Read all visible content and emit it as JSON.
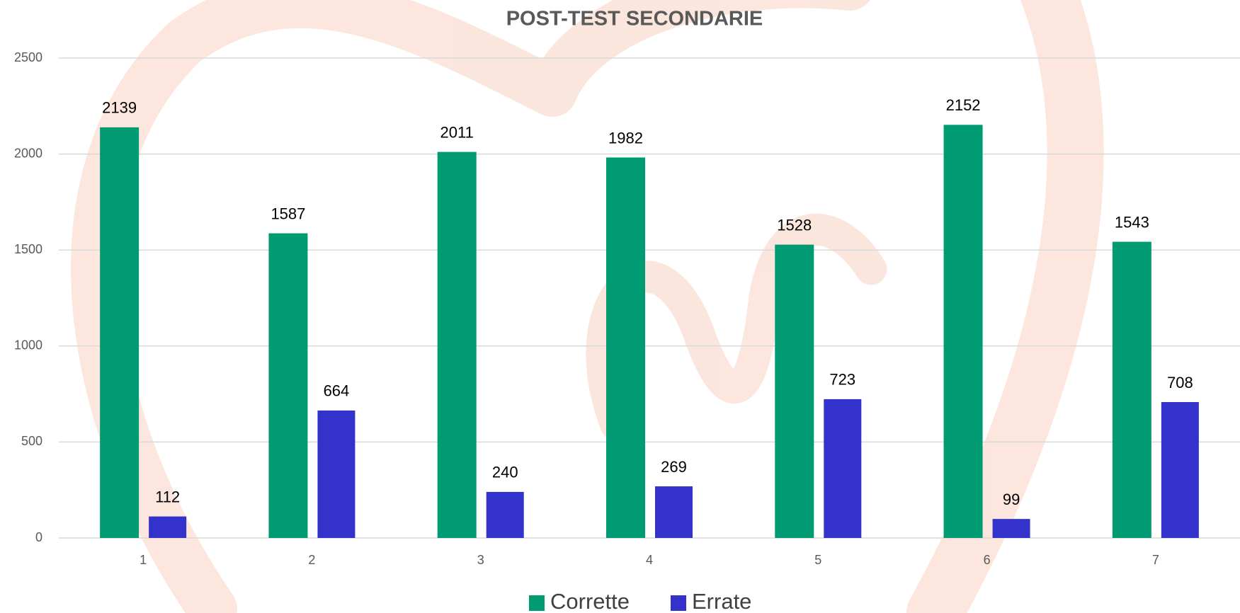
{
  "chart_data": {
    "type": "bar",
    "title": "POST-TEST SECONDARIE",
    "categories": [
      "1",
      "2",
      "3",
      "4",
      "5",
      "6",
      "7"
    ],
    "series": [
      {
        "name": "Corrette",
        "color": "#009b72",
        "values": [
          2139,
          1587,
          2011,
          1982,
          1528,
          2152,
          1543
        ]
      },
      {
        "name": "Errate",
        "color": "#3333cc",
        "values": [
          112,
          664,
          240,
          269,
          723,
          99,
          708
        ]
      }
    ],
    "ylim": [
      0,
      2500
    ],
    "yticks": [
      0,
      500,
      1000,
      1500,
      2000,
      2500
    ],
    "grid": true,
    "legend": "bottom"
  }
}
